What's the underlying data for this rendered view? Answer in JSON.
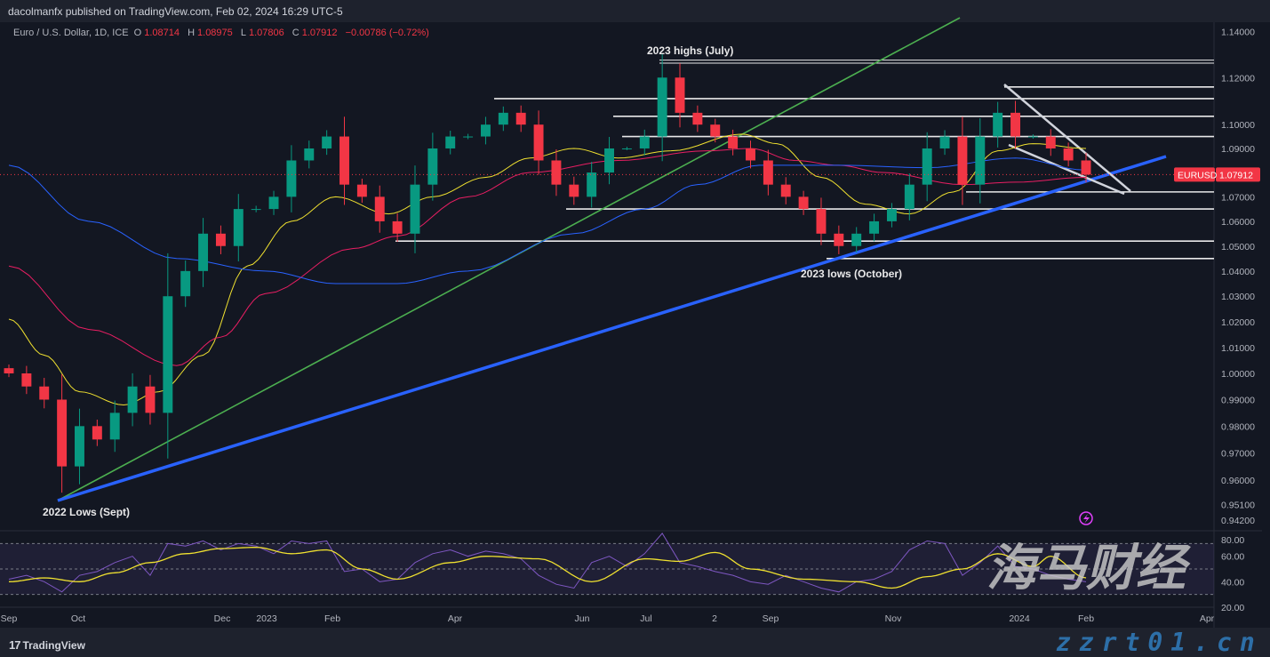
{
  "header": {
    "published": "dacolmanfx published on TradingView.com, Feb 02, 2024 16:29 UTC-5",
    "symbol_desc": "Euro / U.S. Dollar, 1D, ICE",
    "open_label": "O",
    "open": "1.08714",
    "high_label": "H",
    "high": "1.08975",
    "low_label": "L",
    "low": "1.07806",
    "close_label": "C",
    "close": "1.07912",
    "change": "−0.00786 (−0.72%)"
  },
  "price_badge": {
    "symbol": "EURUSD",
    "price": "1.07912",
    "color": "#f23645"
  },
  "annotations": {
    "highs": "2023 highs (July)",
    "lows": "2023 lows (October)",
    "lows_2022": "2022 Lows (Sept)"
  },
  "footer": {
    "logo_mark": "17",
    "logo_text": "TradingView"
  },
  "watermark": {
    "cn": "海马财经",
    "url": "zzrt01.cn"
  },
  "icons": {
    "alert": "lightning-icon"
  },
  "colors": {
    "up": "#089981",
    "down": "#f23645",
    "ma_fast": "#f0e130",
    "ma_mid": "#e91e63",
    "ma_slow": "#2962ff",
    "support_trend": "#2962ff",
    "green_trend": "#4caf50",
    "rsi": "#7e57c2",
    "rsi_ma": "#f0e130"
  },
  "chart_data": [
    {
      "type": "candlestick",
      "symbol": "EURUSD",
      "y_scale": "log",
      "ylim": [
        0.942,
        1.14
      ],
      "y_ticks": [
        "1.14000",
        "1.12000",
        "1.10000",
        "1.09000",
        "1.07000",
        "1.06000",
        "1.05000",
        "1.04000",
        "1.03000",
        "1.02000",
        "1.01000",
        "1.00000",
        "0.99000",
        "0.98000",
        "0.97000",
        "0.96000",
        "0.95100",
        "0.94200"
      ],
      "x_ticks": [
        "Sep",
        "Oct",
        "Dec",
        "2023",
        "Feb",
        "Apr",
        "Jun",
        "Jul",
        "2",
        "Sep",
        "Nov",
        "2024",
        "Feb",
        "Apr"
      ],
      "close": [
        1.0,
        0.995,
        0.99,
        0.965,
        0.98,
        0.975,
        0.985,
        0.995,
        0.985,
        1.03,
        1.04,
        1.055,
        1.05,
        1.065,
        1.065,
        1.07,
        1.085,
        1.09,
        1.095,
        1.075,
        1.07,
        1.06,
        1.055,
        1.075,
        1.09,
        1.095,
        1.095,
        1.1,
        1.105,
        1.1,
        1.085,
        1.075,
        1.07,
        1.08,
        1.09,
        1.09,
        1.095,
        1.12,
        1.105,
        1.1,
        1.095,
        1.09,
        1.085,
        1.075,
        1.07,
        1.065,
        1.055,
        1.05,
        1.055,
        1.06,
        1.065,
        1.075,
        1.09,
        1.095,
        1.075,
        1.095,
        1.105,
        1.095,
        1.095,
        1.09,
        1.085,
        1.07912
      ],
      "moving_averages": [
        {
          "color": "#f0e130",
          "knots": [
            [
              0,
              1.021
            ],
            [
              2,
              1.007
            ],
            [
              4,
              0.993
            ],
            [
              6.5,
              0.988
            ],
            [
              8.5,
              0.993
            ],
            [
              11,
              1.007
            ],
            [
              13.5,
              1.042
            ],
            [
              16,
              1.06
            ],
            [
              18.5,
              1.07
            ],
            [
              21.5,
              1.063
            ],
            [
              24,
              1.07
            ],
            [
              27,
              1.078
            ],
            [
              29.5,
              1.086
            ],
            [
              32,
              1.09
            ],
            [
              34.5,
              1.086
            ],
            [
              37.5,
              1.089
            ],
            [
              41.5,
              1.096
            ],
            [
              43.5,
              1.092
            ],
            [
              46,
              1.078
            ],
            [
              48.5,
              1.067
            ],
            [
              51,
              1.063
            ],
            [
              53.5,
              1.072
            ],
            [
              56,
              1.089
            ],
            [
              58,
              1.092
            ],
            [
              61,
              1.09
            ]
          ]
        },
        {
          "color": "#e91e63",
          "knots": [
            [
              0,
              1.042
            ],
            [
              4.5,
              1.017
            ],
            [
              9.5,
              1.003
            ],
            [
              12,
              1.014
            ],
            [
              14.5,
              1.031
            ],
            [
              19.5,
              1.049
            ],
            [
              22,
              1.054
            ],
            [
              26,
              1.07
            ],
            [
              29.5,
              1.08
            ],
            [
              34.5,
              1.085
            ],
            [
              39.5,
              1.089
            ],
            [
              42,
              1.09
            ],
            [
              44.5,
              1.085
            ],
            [
              47,
              1.083
            ],
            [
              49.5,
              1.08
            ],
            [
              54,
              1.075
            ],
            [
              57,
              1.076
            ],
            [
              61,
              1.078
            ]
          ]
        },
        {
          "color": "#2962ff",
          "knots": [
            [
              0,
              1.083
            ],
            [
              4.5,
              1.06
            ],
            [
              9.5,
              1.045
            ],
            [
              14.5,
              1.04
            ],
            [
              18.5,
              1.035
            ],
            [
              22,
              1.035
            ],
            [
              26,
              1.04
            ],
            [
              32,
              1.055
            ],
            [
              36,
              1.065
            ],
            [
              39,
              1.075
            ],
            [
              42.5,
              1.083
            ],
            [
              47,
              1.083
            ],
            [
              52,
              1.082
            ],
            [
              57,
              1.086
            ],
            [
              61,
              1.081
            ]
          ]
        }
      ],
      "horizontal_levels": [
        1.1275,
        1.1262,
        1.116,
        1.111,
        1.1035,
        1.095,
        1.072,
        1.065,
        1.052,
        1.045
      ]
    },
    {
      "type": "line",
      "title": "RSI",
      "ylim": [
        20,
        80
      ],
      "y_ticks": [
        "80.00",
        "60.00",
        "40.00",
        "20.00"
      ],
      "bands": [
        70,
        50,
        30
      ],
      "rsi": [
        42,
        45,
        40,
        32,
        45,
        48,
        55,
        60,
        45,
        70,
        68,
        72,
        65,
        70,
        68,
        62,
        72,
        70,
        72,
        48,
        50,
        40,
        42,
        55,
        62,
        65,
        60,
        64,
        62,
        58,
        45,
        38,
        35,
        55,
        60,
        52,
        62,
        78,
        55,
        52,
        48,
        45,
        40,
        38,
        45,
        40,
        35,
        32,
        40,
        42,
        48,
        65,
        72,
        70,
        45,
        55,
        68,
        52,
        50,
        45,
        42,
        40
      ],
      "rsi_ma_knots": [
        [
          0,
          40
        ],
        [
          2,
          43
        ],
        [
          4,
          40
        ],
        [
          6,
          47
        ],
        [
          8,
          55
        ],
        [
          10,
          62
        ],
        [
          12,
          66
        ],
        [
          14,
          67
        ],
        [
          16,
          62
        ],
        [
          18,
          65
        ],
        [
          20,
          50
        ],
        [
          22,
          42
        ],
        [
          25,
          55
        ],
        [
          27,
          60
        ],
        [
          30,
          58
        ],
        [
          33,
          40
        ],
        [
          36,
          58
        ],
        [
          38,
          56
        ],
        [
          40,
          63
        ],
        [
          42,
          50
        ],
        [
          45,
          42
        ],
        [
          48,
          40
        ],
        [
          50,
          35
        ],
        [
          52,
          44
        ],
        [
          54,
          50
        ],
        [
          56,
          62
        ],
        [
          58,
          52
        ],
        [
          59,
          60
        ],
        [
          61,
          43
        ]
      ]
    }
  ]
}
